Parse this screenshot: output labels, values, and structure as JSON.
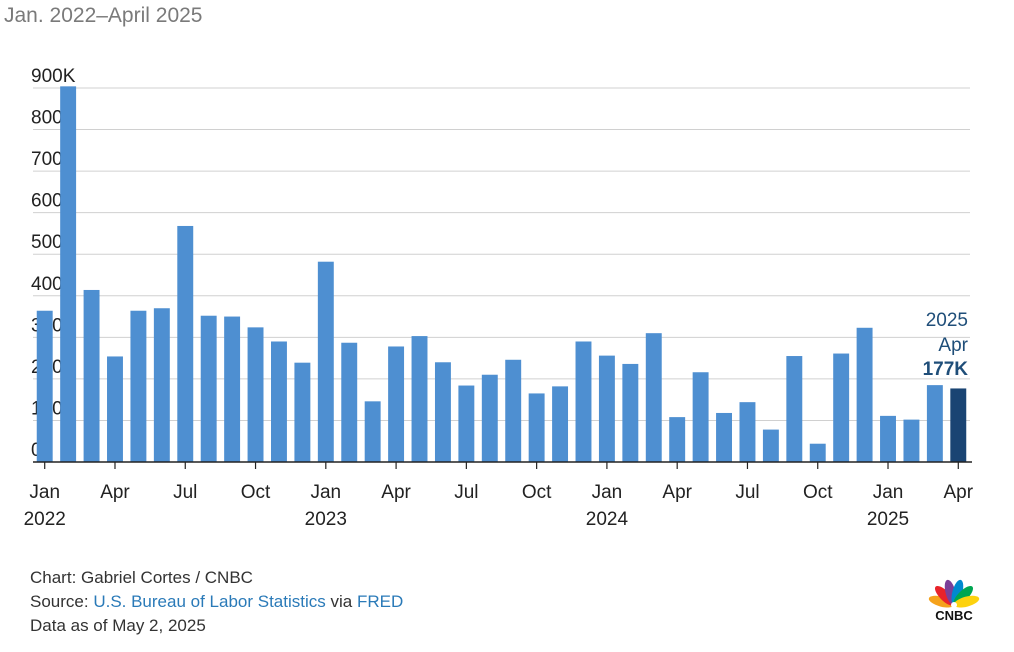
{
  "subtitle": "Jan. 2022–April 2025",
  "chart_data": {
    "type": "bar",
    "title": "",
    "xlabel": "",
    "ylabel": "",
    "ylim": [
      0,
      900
    ],
    "unit": "K",
    "yticks": [
      {
        "value": 0,
        "label": "0"
      },
      {
        "value": 100,
        "label": "100K"
      },
      {
        "value": 200,
        "label": "200K"
      },
      {
        "value": 300,
        "label": "300K"
      },
      {
        "value": 400,
        "label": "400K"
      },
      {
        "value": 500,
        "label": "500K"
      },
      {
        "value": 600,
        "label": "600K"
      },
      {
        "value": 700,
        "label": "700K"
      },
      {
        "value": 800,
        "label": "800K"
      },
      {
        "value": 900,
        "label": "900K"
      }
    ],
    "grid": "horizontal",
    "categories": [
      "2022-01",
      "2022-02",
      "2022-03",
      "2022-04",
      "2022-05",
      "2022-06",
      "2022-07",
      "2022-08",
      "2022-09",
      "2022-10",
      "2022-11",
      "2022-12",
      "2023-01",
      "2023-02",
      "2023-03",
      "2023-04",
      "2023-05",
      "2023-06",
      "2023-07",
      "2023-08",
      "2023-09",
      "2023-10",
      "2023-11",
      "2023-12",
      "2024-01",
      "2024-02",
      "2024-03",
      "2024-04",
      "2024-05",
      "2024-06",
      "2024-07",
      "2024-08",
      "2024-09",
      "2024-10",
      "2024-11",
      "2024-12",
      "2025-01",
      "2025-02",
      "2025-03",
      "2025-04"
    ],
    "values": [
      364,
      904,
      414,
      254,
      364,
      370,
      568,
      352,
      350,
      324,
      290,
      239,
      482,
      287,
      146,
      278,
      303,
      240,
      184,
      210,
      246,
      165,
      182,
      290,
      256,
      236,
      310,
      108,
      216,
      118,
      144,
      78,
      255,
      44,
      261,
      323,
      111,
      102,
      185,
      177
    ],
    "bar_color": "#4e8fd1",
    "highlight_color": "#1a4473",
    "highlight_index": 39,
    "xticks": [
      {
        "index": 0,
        "label": "Jan",
        "year": "2022"
      },
      {
        "index": 3,
        "label": "Apr"
      },
      {
        "index": 6,
        "label": "Jul"
      },
      {
        "index": 9,
        "label": "Oct"
      },
      {
        "index": 12,
        "label": "Jan",
        "year": "2023"
      },
      {
        "index": 15,
        "label": "Apr"
      },
      {
        "index": 18,
        "label": "Jul"
      },
      {
        "index": 21,
        "label": "Oct"
      },
      {
        "index": 24,
        "label": "Jan",
        "year": "2024"
      },
      {
        "index": 27,
        "label": "Apr"
      },
      {
        "index": 30,
        "label": "Jul"
      },
      {
        "index": 33,
        "label": "Oct"
      },
      {
        "index": 36,
        "label": "Jan",
        "year": "2025"
      },
      {
        "index": 39,
        "label": "Apr"
      }
    ],
    "annotation": {
      "line1": "2025",
      "line2": "Apr",
      "value": "177K"
    }
  },
  "footer": {
    "credit": "Chart: Gabriel Cortes / CNBC",
    "source_prefix": "Source: ",
    "source_link": "U.S. Bureau of Labor Statistics",
    "source_mid": " via ",
    "source_link2": "FRED",
    "date_note": "Data as of May 2, 2025"
  },
  "logo": {
    "text": "CNBC",
    "colors": [
      "#f5a21b",
      "#e8232a",
      "#7b3f98",
      "#0089cf",
      "#00a651",
      "#fdd20e"
    ]
  }
}
